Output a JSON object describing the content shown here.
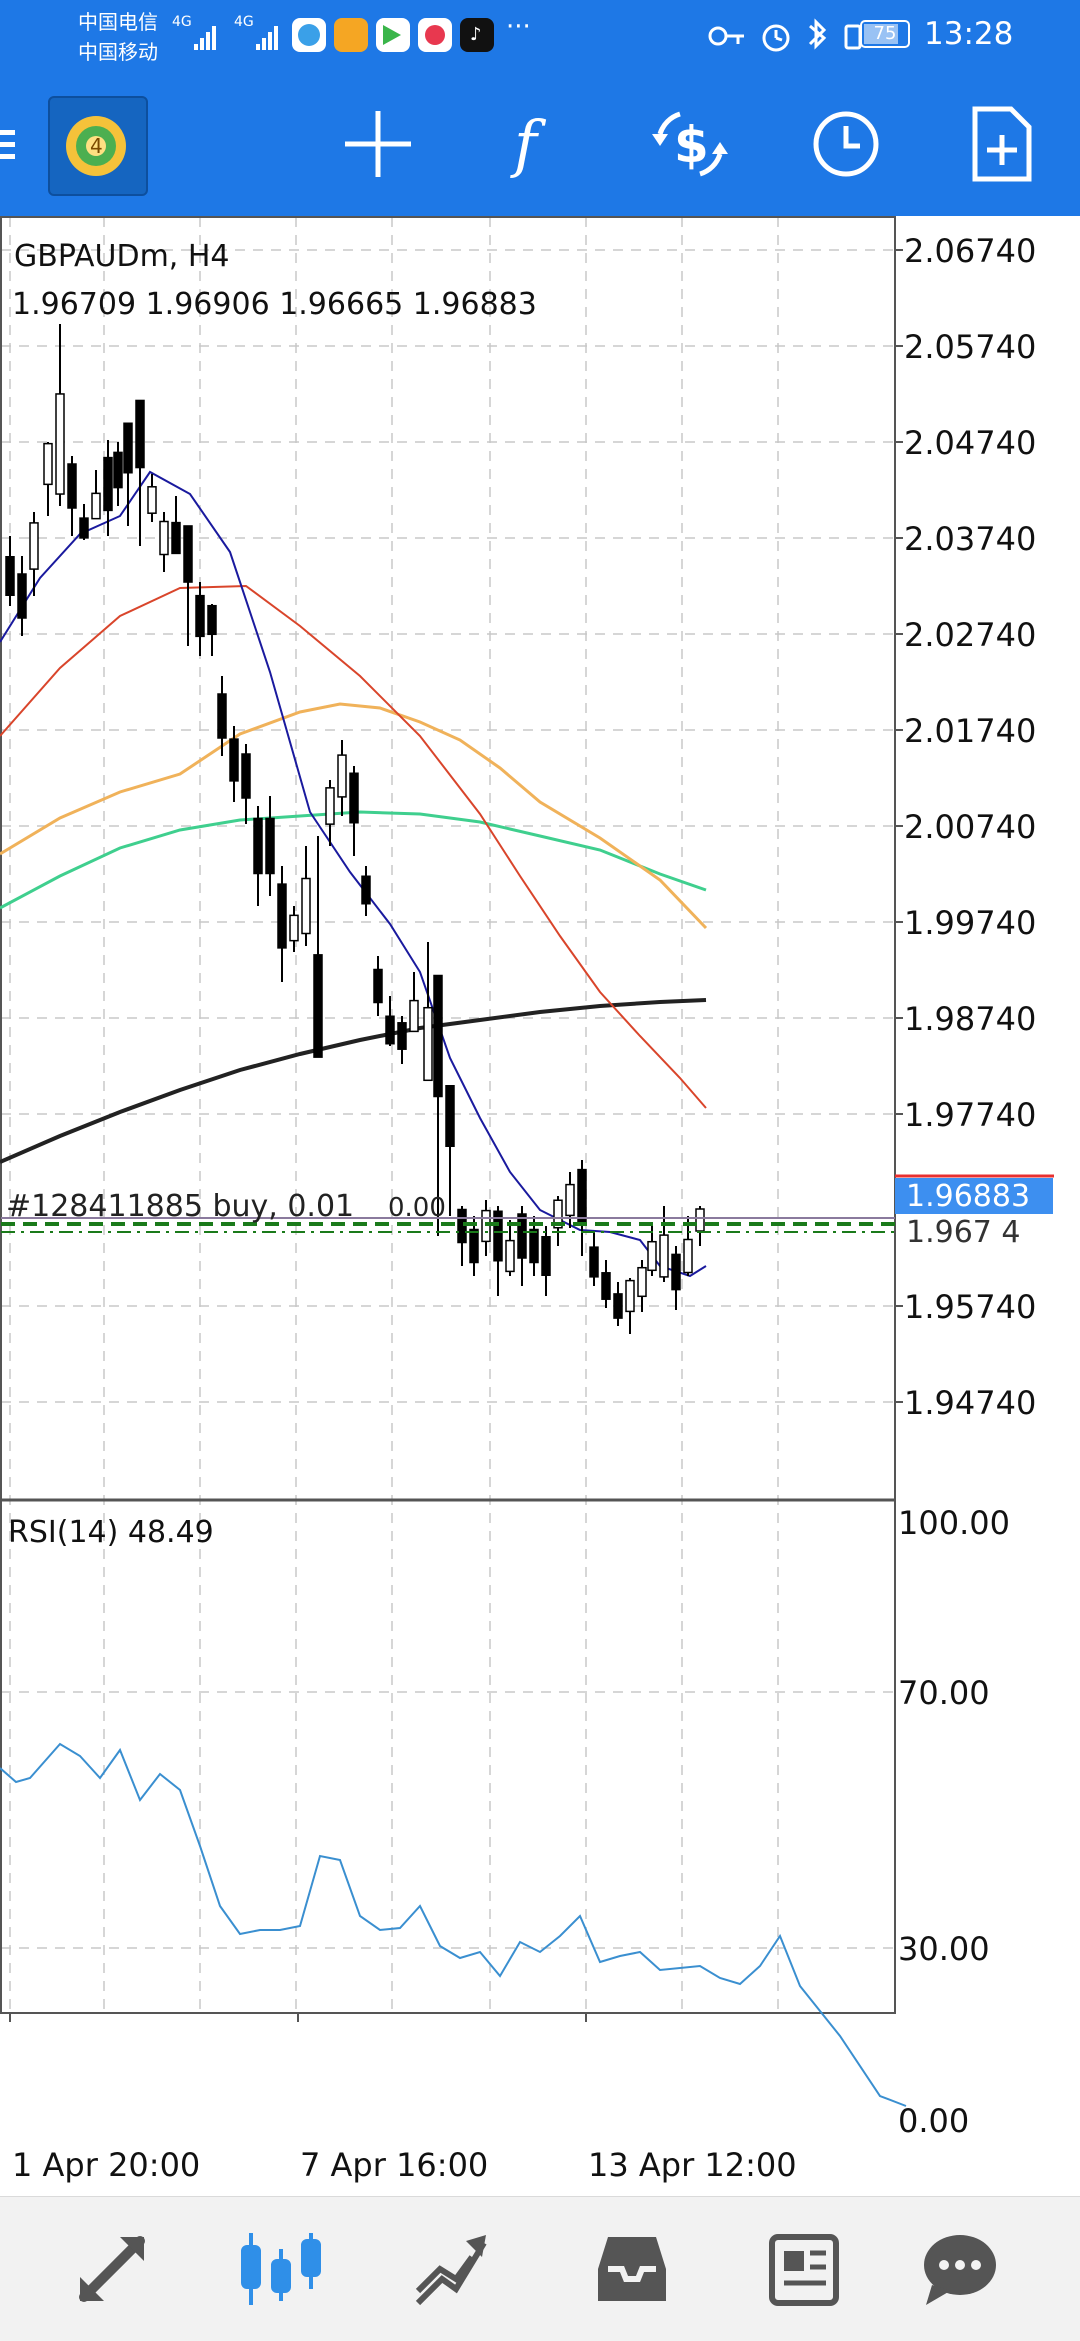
{
  "status_bar": {
    "carrier1": "中国电信",
    "carrier2": "中国移动",
    "net1": "4G",
    "net2": "4G",
    "more": "···",
    "battery": "75",
    "time": "13:28"
  },
  "toolbar": {
    "buttons": [
      "menu",
      "crosshair",
      "indicators",
      "symbols",
      "timeframes",
      "new-order"
    ]
  },
  "chart": {
    "symbol_label": "GBPAUDm, H4",
    "ohlc_label": "1.96709 1.96906 1.96665 1.96883",
    "current_price": "1.96883",
    "price_axis": [
      "2.06740",
      "2.05740",
      "2.04740",
      "2.03740",
      "2.02740",
      "2.01740",
      "2.00740",
      "1.99740",
      "1.98740",
      "1.97740",
      "1.95740",
      "1.94740"
    ],
    "trade_label": "#128411885 buy, 0.01",
    "trade_label_extra": "0.00",
    "rsi_label": "RSI(14) 48.49",
    "rsi_axis": [
      "100.00",
      "70.00",
      "30.00",
      "0.00"
    ],
    "time_axis": [
      "1 Apr 20:00",
      "7 Apr 16:00",
      "13 Apr 12:00"
    ],
    "colors": {
      "bull": "#ffffff",
      "bear": "#000000",
      "ma_fast": "#1a1a9e",
      "ma_red": "#d9452b",
      "ma_orange": "#f0b25a",
      "ma_green": "#3fcf8e",
      "ma_black": "#222222",
      "rsi": "#3a8fd0",
      "price_tag": "#3d8ff0",
      "trade_line": "#1a7a1a"
    }
  },
  "bottom_nav": {
    "items": [
      "quotes",
      "chart",
      "trade",
      "history",
      "news",
      "messages"
    ],
    "active": "chart"
  }
}
